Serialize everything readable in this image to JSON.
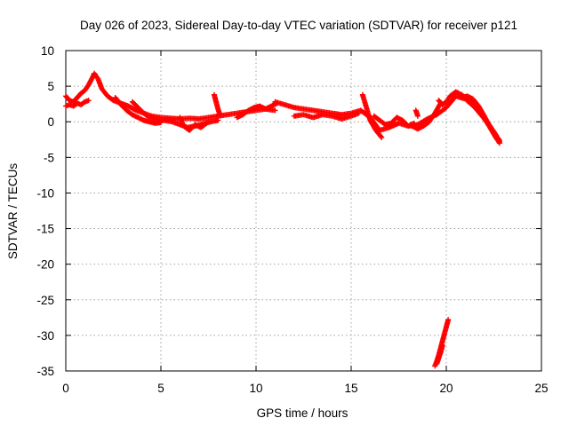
{
  "chart_data": {
    "type": "scatter",
    "title": "Day 026 of 2023, Sidereal Day-to-day VTEC variation (SDTVAR) for receiver p121",
    "xlabel": "GPS time / hours",
    "ylabel": "SDTVAR / TECUs",
    "xlim": [
      0,
      25
    ],
    "ylim": [
      -35,
      10
    ],
    "x_ticks": [
      0,
      5,
      10,
      15,
      20,
      25
    ],
    "y_ticks": [
      10,
      5,
      0,
      -5,
      -10,
      -15,
      -20,
      -25,
      -30,
      -35
    ],
    "grid": true,
    "marker": "+",
    "series": [
      {
        "name": "SDTVAR",
        "color": "#ff0000",
        "tracks": [
          {
            "x": [
              0.0,
              0.2,
              0.4,
              0.6,
              0.8,
              1.0,
              1.2,
              1.4,
              1.5,
              1.7,
              1.9,
              2.2,
              2.5,
              2.9,
              3.3,
              3.7,
              4.1,
              4.5,
              5.0,
              5.5,
              6.0,
              6.5,
              7.0,
              7.5,
              8.0,
              8.5,
              9.0,
              9.5,
              10.0,
              10.5,
              11.0
            ],
            "y": [
              3.6,
              3.0,
              2.8,
              3.4,
              4.0,
              4.4,
              5.2,
              6.2,
              6.8,
              6.0,
              4.6,
              3.6,
              3.0,
              2.6,
              2.2,
              1.6,
              1.2,
              0.8,
              0.6,
              0.5,
              0.4,
              0.5,
              0.4,
              0.6,
              0.8,
              1.0,
              1.2,
              1.4,
              1.6,
              1.8,
              1.6
            ]
          },
          {
            "x": [
              0.0,
              0.2,
              0.4,
              0.6,
              0.8,
              1.0,
              1.2
            ],
            "y": [
              2.2,
              2.4,
              2.2,
              2.6,
              2.4,
              2.8,
              3.0
            ]
          },
          {
            "x": [
              2.6,
              2.9,
              3.2,
              3.5,
              3.8,
              4.1,
              4.4,
              4.7,
              5.0
            ],
            "y": [
              3.4,
              2.4,
              1.6,
              1.0,
              0.6,
              0.2,
              0.0,
              -0.2,
              -0.1
            ]
          },
          {
            "x": [
              3.5,
              3.8,
              4.1,
              4.4,
              4.8,
              5.2,
              5.6,
              6.0,
              6.4,
              6.8,
              7.2,
              7.6,
              8.0
            ],
            "y": [
              2.8,
              2.0,
              1.2,
              0.6,
              0.3,
              0.2,
              0.0,
              -0.4,
              -0.8,
              -0.6,
              -0.3,
              0.0,
              0.2
            ]
          },
          {
            "x": [
              6.0,
              6.2,
              6.5,
              6.8,
              7.1,
              7.4
            ],
            "y": [
              0.6,
              -0.6,
              -1.2,
              -0.4,
              -0.8,
              -0.2
            ]
          },
          {
            "x": [
              7.8,
              7.9,
              8.0,
              8.1
            ],
            "y": [
              3.8,
              2.8,
              1.8,
              1.0
            ]
          },
          {
            "x": [
              9.0,
              9.3,
              9.6,
              9.9,
              10.2,
              10.5,
              10.8,
              11.1
            ],
            "y": [
              0.6,
              1.0,
              1.6,
              2.0,
              2.2,
              1.8,
              2.2,
              2.6
            ]
          },
          {
            "x": [
              11.0,
              11.5,
              12.0,
              12.5,
              13.0,
              13.5,
              14.0,
              14.5,
              15.0,
              15.5,
              16.0,
              16.5,
              17.0,
              17.5,
              18.0,
              18.5,
              19.0,
              19.5,
              20.0,
              20.5,
              21.0,
              21.5,
              22.0,
              22.5,
              22.8
            ],
            "y": [
              2.8,
              2.4,
              2.0,
              1.8,
              1.6,
              1.4,
              1.2,
              1.0,
              1.2,
              1.6,
              0.6,
              -1.2,
              -0.8,
              -0.2,
              -0.6,
              -0.4,
              0.4,
              1.0,
              2.0,
              3.6,
              3.2,
              2.0,
              0.4,
              -1.6,
              -2.6
            ]
          },
          {
            "x": [
              12.0,
              12.5,
              13.0,
              13.5,
              14.0,
              14.5,
              15.0,
              15.4
            ],
            "y": [
              0.8,
              1.0,
              0.6,
              1.0,
              0.8,
              0.4,
              0.8,
              1.2
            ]
          },
          {
            "x": [
              15.6,
              15.8,
              16.0,
              16.3,
              16.6
            ],
            "y": [
              3.8,
              2.0,
              0.2,
              -1.2,
              -2.2
            ]
          },
          {
            "x": [
              16.2,
              16.5,
              16.8,
              17.1,
              17.4,
              17.7,
              18.0,
              18.3
            ],
            "y": [
              0.8,
              0.2,
              -0.4,
              -0.2,
              0.6,
              0.2,
              -0.6,
              -0.2
            ]
          },
          {
            "x": [
              18.2,
              18.5,
              18.8,
              19.1,
              19.4,
              19.7
            ],
            "y": [
              -0.6,
              -1.0,
              -0.6,
              0.0,
              1.2,
              2.6
            ]
          },
          {
            "x": [
              18.4,
              18.5
            ],
            "y": [
              1.6,
              0.8
            ]
          },
          {
            "x": [
              19.6,
              19.8,
              20.0,
              20.2,
              20.5,
              20.8,
              21.1,
              21.4,
              21.7,
              22.0,
              22.3,
              22.6,
              22.8
            ],
            "y": [
              3.0,
              2.4,
              2.8,
              3.6,
              4.2,
              3.8,
              3.2,
              2.6,
              1.6,
              0.6,
              -0.6,
              -1.8,
              -2.8
            ]
          },
          {
            "x": [
              20.8,
              21.1,
              21.4,
              21.7,
              22.0,
              22.3,
              22.6,
              22.8
            ],
            "y": [
              3.4,
              3.6,
              3.2,
              2.2,
              0.8,
              -0.8,
              -2.2,
              -3.0
            ]
          },
          {
            "x": [
              19.4,
              19.5,
              19.6,
              19.7,
              19.8,
              19.9,
              20.0,
              20.1
            ],
            "y": [
              -34.3,
              -33.6,
              -32.8,
              -31.8,
              -30.8,
              -29.8,
              -28.8,
              -27.8
            ]
          },
          {
            "x": [
              19.5,
              19.6,
              19.7,
              19.8
            ],
            "y": [
              -34.0,
              -33.2,
              -32.4,
              -31.4
            ]
          }
        ]
      }
    ]
  }
}
